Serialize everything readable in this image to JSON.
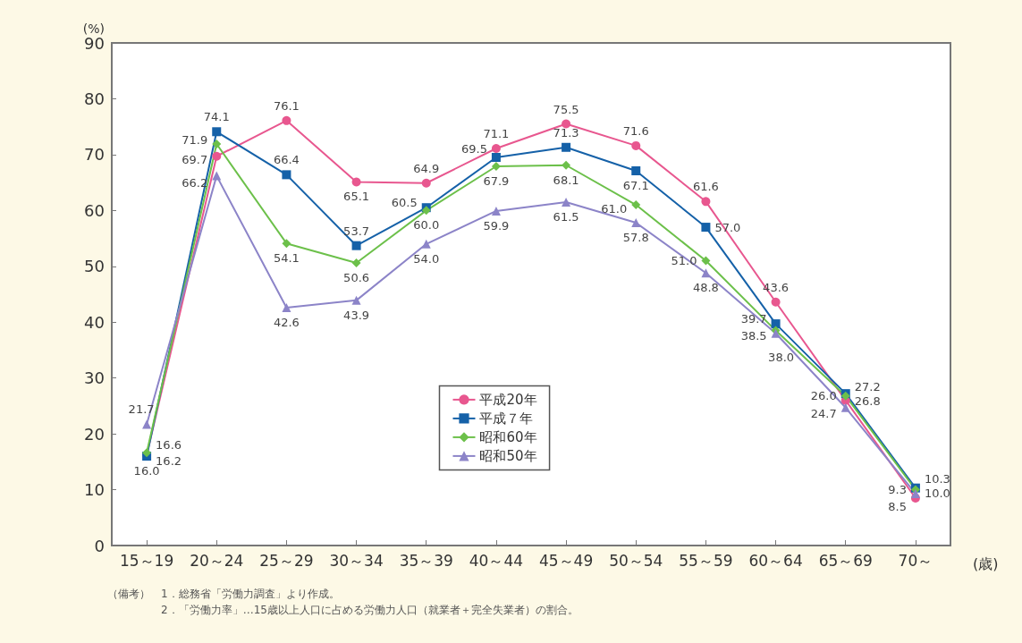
{
  "chart_data": {
    "type": "line",
    "ylabel": "(%)",
    "xlabel": "(歳)",
    "categories": [
      "15～19",
      "20～24",
      "25～29",
      "30～34",
      "35～39",
      "40～44",
      "45～49",
      "50～54",
      "55～59",
      "60～64",
      "65～69",
      "70～"
    ],
    "series": [
      {
        "name": "平成20年",
        "color": "#e8578f",
        "marker": "circle",
        "values": [
          16.2,
          69.7,
          76.1,
          65.1,
          64.9,
          71.1,
          75.5,
          71.6,
          61.6,
          43.6,
          26.0,
          8.5
        ],
        "value_labels": [
          "16.2",
          "69.7",
          "76.1",
          "65.1",
          "64.9",
          "71.1",
          "75.5",
          "71.6",
          "61.6",
          "43.6",
          "26.0",
          "8.5"
        ]
      },
      {
        "name": "平成７年",
        "color": "#1561a8",
        "marker": "square",
        "values": [
          16.0,
          74.1,
          66.4,
          53.7,
          60.5,
          69.5,
          71.3,
          67.1,
          57.0,
          39.7,
          27.2,
          10.3
        ],
        "value_labels": [
          "16.0",
          "74.1",
          "66.4",
          "53.7",
          "60.5",
          "69.5",
          "71.3",
          "67.1",
          "57.0",
          "39.7",
          "27.2",
          "10.3"
        ]
      },
      {
        "name": "昭和60年",
        "color": "#6cc04a",
        "marker": "diamond",
        "values": [
          16.6,
          71.9,
          54.1,
          50.6,
          60.0,
          67.9,
          68.1,
          61.0,
          51.0,
          38.5,
          26.8,
          10.0
        ],
        "value_labels": [
          "16.6",
          "71.9",
          "54.1",
          "50.6",
          "60.0",
          "67.9",
          "68.1",
          "61.0",
          "51.0",
          "38.5",
          "26.8",
          "10.0"
        ]
      },
      {
        "name": "昭和50年",
        "color": "#8c84c8",
        "marker": "triangle",
        "values": [
          21.7,
          66.2,
          42.6,
          43.9,
          54.0,
          59.9,
          61.5,
          57.8,
          48.8,
          38.0,
          24.7,
          9.3
        ],
        "value_labels": [
          "21.7",
          "66.2",
          "42.6",
          "43.9",
          "54.0",
          "59.9",
          "61.5",
          "57.8",
          "48.8",
          "38.0",
          "24.7",
          "9.3"
        ]
      }
    ],
    "ylim": [
      0,
      90
    ],
    "yticks": [
      0,
      10,
      20,
      30,
      40,
      50,
      60,
      70,
      80,
      90
    ],
    "grid": false,
    "legend": "center",
    "line_style": "solid",
    "annotations": [
      "（備考）　1．総務省「労働力調査」より作成。",
      "2．「労働力率」…15歳以上人口に占める労働力人口（就業者＋完全失業者）の割合。"
    ]
  }
}
